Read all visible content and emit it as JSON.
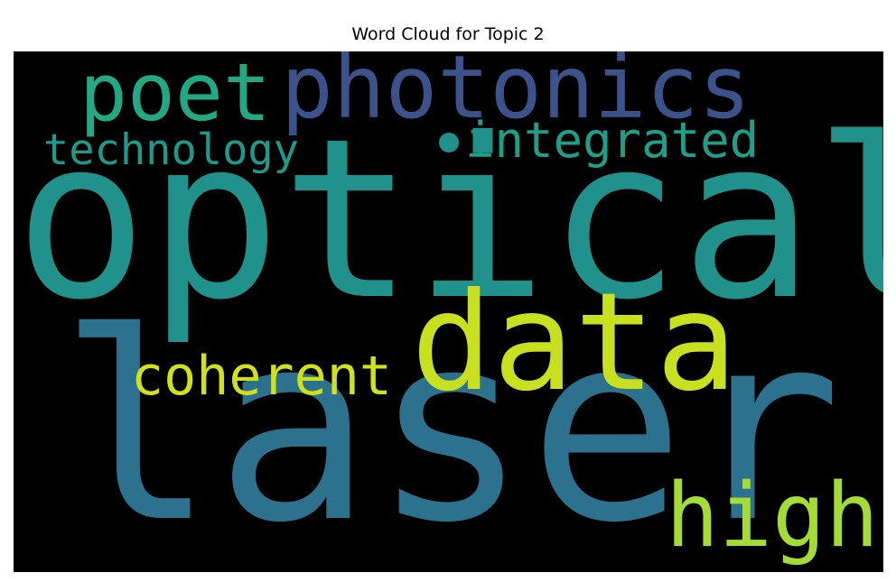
{
  "chart_data": {
    "type": "wordcloud",
    "title": "Word Cloud for Topic 2",
    "background": "#000000",
    "words": [
      {
        "text": "optical",
        "color": "#21918c"
      },
      {
        "text": "laser",
        "color": "#2c728e"
      },
      {
        "text": "data",
        "color": "#c8e020"
      },
      {
        "text": "photonics",
        "color": "#3b528b"
      },
      {
        "text": "poet",
        "color": "#22a884"
      },
      {
        "text": "high",
        "color": "#a5db36"
      },
      {
        "text": "integrated",
        "color": "#1f9e89"
      },
      {
        "text": "coherent",
        "color": "#d0e11c"
      },
      {
        "text": "technology",
        "color": "#1f9a8a"
      }
    ]
  }
}
